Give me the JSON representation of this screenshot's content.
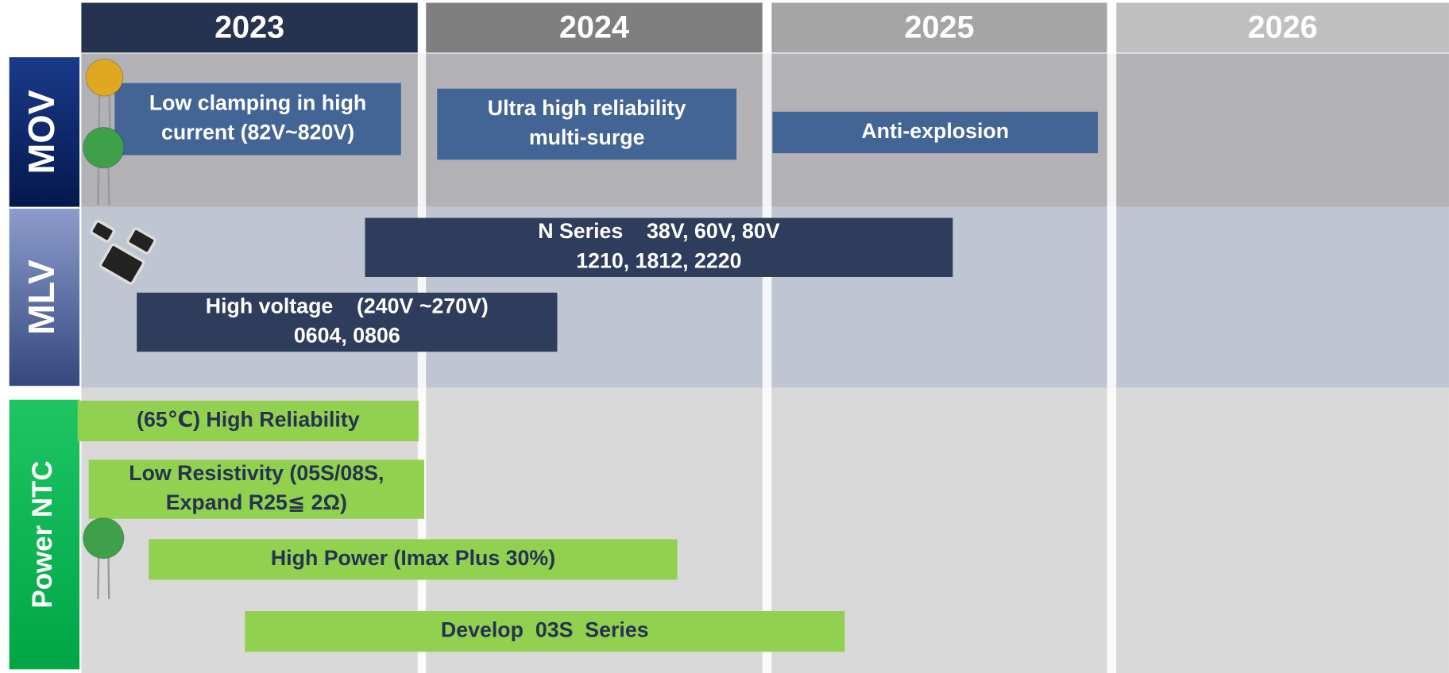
{
  "years": [
    "2023",
    "2024",
    "2025",
    "2026"
  ],
  "rows": [
    {
      "label": "MOV",
      "items": [
        {
          "lines": [
            "Low clamping in high",
            "current (82V~820V)"
          ]
        },
        {
          "lines": [
            "Ultra high reliability",
            "multi-surge"
          ]
        },
        {
          "lines": [
            "Anti-explosion"
          ]
        }
      ]
    },
    {
      "label": "MLV",
      "items": [
        {
          "lines": [
            "N Series    38V, 60V, 80V",
            "1210, 1812, 2220"
          ]
        },
        {
          "lines": [
            "High voltage    (240V ~270V)",
            "0604, 0806"
          ]
        }
      ]
    },
    {
      "label": "Power NTC",
      "items": [
        {
          "lines": [
            "(65℃) High Reliability"
          ]
        },
        {
          "lines": [
            "Low Resistivity (05S/08S,",
            "Expand R25≦ 2Ω)"
          ]
        },
        {
          "lines": [
            "High Power (Imax Plus 30%)"
          ]
        },
        {
          "lines": [
            "Develop  03S  Series"
          ]
        }
      ]
    }
  ]
}
